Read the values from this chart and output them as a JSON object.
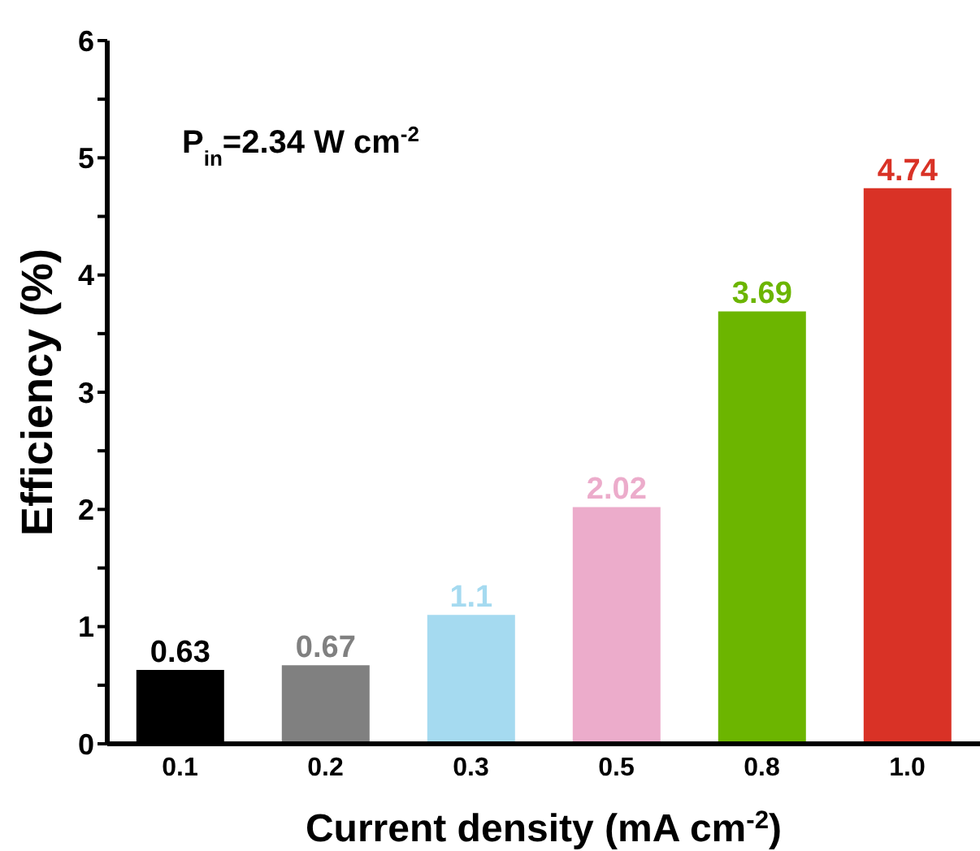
{
  "chart_data": {
    "type": "bar",
    "xlabel": "Current density (mA cm$^{-2}$)",
    "ylabel": "Efficiency (%)",
    "annotations": [
      "P$_{in}$=2.34 W cm$^{-2}$"
    ],
    "categories": [
      "0.1",
      "0.2",
      "0.3",
      "0.5",
      "0.8",
      "1.0"
    ],
    "values": [
      0.63,
      0.67,
      1.1,
      2.02,
      3.69,
      4.74
    ],
    "colors": [
      "#000000",
      "#808080",
      "#a5daf0",
      "#ecaccb",
      "#6cb500",
      "#d93226"
    ],
    "data_labels": true,
    "ylim": [
      0,
      6
    ],
    "yticks": [
      0,
      {
        "value": 0.5,
        "label": null
      },
      1,
      {
        "value": 1.5,
        "label": null
      },
      2,
      {
        "value": 2.5,
        "label": null
      },
      3,
      {
        "value": 3.5,
        "label": null
      },
      4,
      {
        "value": 4.5,
        "label": null
      },
      5,
      {
        "value": 5.5,
        "label": null
      },
      6
    ],
    "grid": false,
    "legend": false
  }
}
